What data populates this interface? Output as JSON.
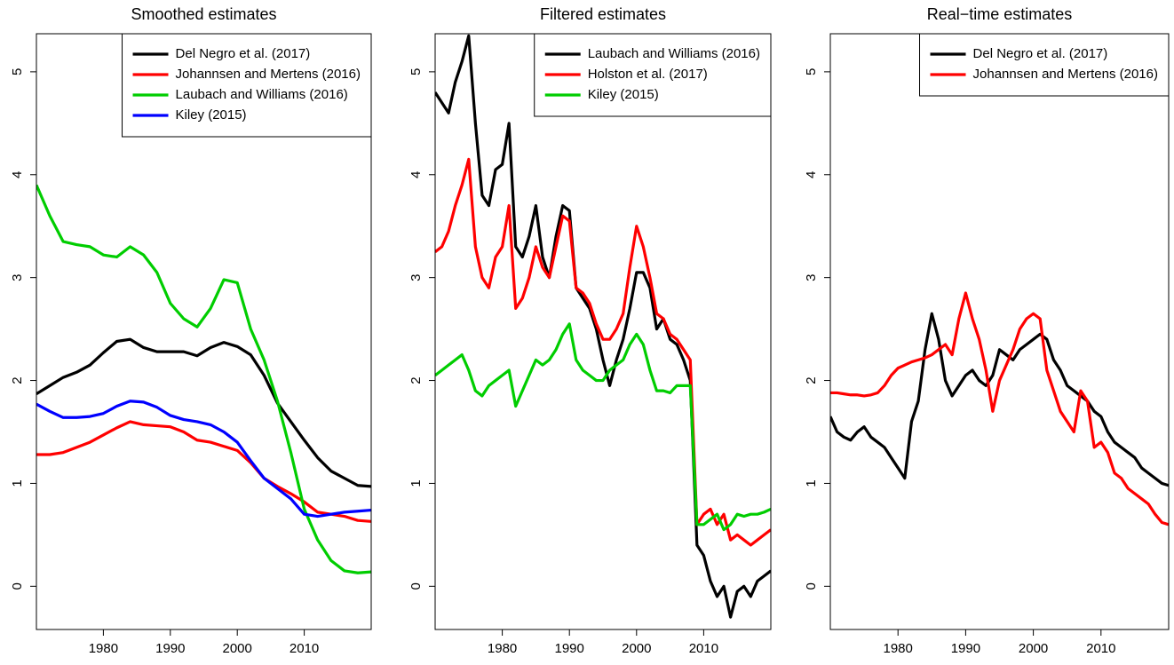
{
  "chart_data": [
    {
      "type": "line",
      "title": "Smoothed estimates",
      "legend": "topright",
      "x": [
        1970,
        1972,
        1974,
        1976,
        1978,
        1980,
        1982,
        1984,
        1986,
        1988,
        1990,
        1992,
        1994,
        1996,
        1998,
        2000,
        2002,
        2004,
        2006,
        2008,
        2010,
        2012,
        2014,
        2016,
        2018,
        2020
      ],
      "xlim": [
        1970,
        2020
      ],
      "ylim": [
        -0.42,
        5.37
      ],
      "xticks": [
        1980,
        1990,
        2000,
        2010
      ],
      "yticks": [
        0,
        1,
        2,
        3,
        4,
        5
      ],
      "series": [
        {
          "name": "Del Negro et al. (2017)",
          "color": "#000000",
          "values": [
            1.87,
            1.95,
            2.03,
            2.08,
            2.15,
            2.27,
            2.38,
            2.4,
            2.32,
            2.28,
            2.28,
            2.28,
            2.24,
            2.32,
            2.37,
            2.33,
            2.25,
            2.05,
            1.78,
            1.6,
            1.42,
            1.25,
            1.12,
            1.05,
            0.98,
            0.97
          ]
        },
        {
          "name": "Johannsen and Mertens (2016)",
          "color": "#ff0000",
          "values": [
            1.28,
            1.28,
            1.3,
            1.35,
            1.4,
            1.47,
            1.54,
            1.6,
            1.57,
            1.56,
            1.55,
            1.5,
            1.42,
            1.4,
            1.36,
            1.32,
            1.2,
            1.05,
            0.97,
            0.9,
            0.82,
            0.72,
            0.7,
            0.68,
            0.64,
            0.63
          ]
        },
        {
          "name": "Laubach and Williams (2016)",
          "color": "#00cd00",
          "values": [
            3.9,
            3.6,
            3.35,
            3.32,
            3.3,
            3.22,
            3.2,
            3.3,
            3.22,
            3.05,
            2.75,
            2.6,
            2.52,
            2.7,
            2.98,
            2.95,
            2.5,
            2.2,
            1.8,
            1.3,
            0.75,
            0.45,
            0.25,
            0.15,
            0.13,
            0.14
          ]
        },
        {
          "name": "Kiley (2015)",
          "color": "#0000ff",
          "values": [
            1.77,
            1.7,
            1.64,
            1.64,
            1.65,
            1.68,
            1.75,
            1.8,
            1.79,
            1.74,
            1.66,
            1.62,
            1.6,
            1.57,
            1.5,
            1.4,
            1.22,
            1.05,
            0.95,
            0.85,
            0.7,
            0.68,
            0.7,
            0.72,
            0.73,
            0.74
          ]
        }
      ]
    },
    {
      "type": "line",
      "title": "Filtered estimates",
      "legend": "topright",
      "x": [
        1970,
        1971,
        1972,
        1973,
        1974,
        1975,
        1976,
        1977,
        1978,
        1979,
        1980,
        1981,
        1982,
        1983,
        1984,
        1985,
        1986,
        1987,
        1988,
        1989,
        1990,
        1991,
        1992,
        1993,
        1994,
        1995,
        1996,
        1997,
        1998,
        1999,
        2000,
        2001,
        2002,
        2003,
        2004,
        2005,
        2006,
        2007,
        2008,
        2009,
        2010,
        2011,
        2012,
        2013,
        2014,
        2015,
        2016,
        2017,
        2018,
        2019,
        2020
      ],
      "xlim": [
        1970,
        2020
      ],
      "ylim": [
        -0.42,
        5.37
      ],
      "xticks": [
        1980,
        1990,
        2000,
        2010
      ],
      "yticks": [
        0,
        1,
        2,
        3,
        4,
        5
      ],
      "series": [
        {
          "name": "Laubach and Williams (2016)",
          "color": "#000000",
          "values": [
            4.8,
            4.7,
            4.6,
            4.9,
            5.1,
            5.35,
            4.5,
            3.8,
            3.7,
            4.05,
            4.1,
            4.5,
            3.3,
            3.2,
            3.4,
            3.7,
            3.2,
            3.0,
            3.4,
            3.7,
            3.65,
            2.9,
            2.8,
            2.7,
            2.5,
            2.2,
            1.95,
            2.2,
            2.4,
            2.7,
            3.05,
            3.05,
            2.9,
            2.5,
            2.6,
            2.4,
            2.35,
            2.2,
            2.0,
            0.4,
            0.3,
            0.05,
            -0.1,
            0.0,
            -0.3,
            -0.05,
            0.0,
            -0.1,
            0.05,
            0.1,
            0.15
          ]
        },
        {
          "name": "Holston et al. (2017)",
          "color": "#ff0000",
          "values": [
            3.25,
            3.3,
            3.45,
            3.7,
            3.9,
            4.15,
            3.3,
            3.0,
            2.9,
            3.2,
            3.3,
            3.7,
            2.7,
            2.8,
            3.0,
            3.3,
            3.1,
            3.0,
            3.3,
            3.6,
            3.55,
            2.9,
            2.85,
            2.75,
            2.55,
            2.4,
            2.4,
            2.5,
            2.65,
            3.1,
            3.5,
            3.3,
            3.0,
            2.65,
            2.6,
            2.45,
            2.4,
            2.3,
            2.2,
            0.6,
            0.7,
            0.75,
            0.6,
            0.7,
            0.45,
            0.5,
            0.45,
            0.4,
            0.45,
            0.5,
            0.55
          ]
        },
        {
          "name": "Kiley (2015)",
          "color": "#00cd00",
          "values": [
            2.05,
            2.1,
            2.15,
            2.2,
            2.25,
            2.1,
            1.9,
            1.85,
            1.95,
            2.0,
            2.05,
            2.1,
            1.75,
            1.9,
            2.05,
            2.2,
            2.15,
            2.2,
            2.3,
            2.45,
            2.55,
            2.2,
            2.1,
            2.05,
            2.0,
            2.0,
            2.1,
            2.15,
            2.2,
            2.35,
            2.45,
            2.35,
            2.1,
            1.9,
            1.9,
            1.88,
            1.95,
            1.95,
            1.95,
            0.6,
            0.6,
            0.65,
            0.7,
            0.55,
            0.6,
            0.7,
            0.68,
            0.7,
            0.7,
            0.72,
            0.75
          ]
        }
      ]
    },
    {
      "type": "line",
      "title": "Real−time estimates",
      "legend": "topright",
      "x": [
        1970,
        1971,
        1972,
        1973,
        1974,
        1975,
        1976,
        1977,
        1978,
        1979,
        1980,
        1981,
        1982,
        1983,
        1984,
        1985,
        1986,
        1987,
        1988,
        1989,
        1990,
        1991,
        1992,
        1993,
        1994,
        1995,
        1996,
        1997,
        1998,
        1999,
        2000,
        2001,
        2002,
        2003,
        2004,
        2005,
        2006,
        2007,
        2008,
        2009,
        2010,
        2011,
        2012,
        2013,
        2014,
        2015,
        2016,
        2017,
        2018,
        2019,
        2020
      ],
      "xlim": [
        1970,
        2020
      ],
      "ylim": [
        -0.42,
        5.37
      ],
      "xticks": [
        1980,
        1990,
        2000,
        2010
      ],
      "yticks": [
        0,
        1,
        2,
        3,
        4,
        5
      ],
      "series": [
        {
          "name": "Del Negro et al. (2017)",
          "color": "#000000",
          "values": [
            1.65,
            1.5,
            1.45,
            1.42,
            1.5,
            1.55,
            1.45,
            1.4,
            1.35,
            1.25,
            1.15,
            1.05,
            1.6,
            1.8,
            2.3,
            2.65,
            2.4,
            2.0,
            1.85,
            1.95,
            2.05,
            2.1,
            2.0,
            1.95,
            2.05,
            2.3,
            2.25,
            2.2,
            2.3,
            2.35,
            2.4,
            2.45,
            2.4,
            2.2,
            2.1,
            1.95,
            1.9,
            1.85,
            1.8,
            1.7,
            1.65,
            1.5,
            1.4,
            1.35,
            1.3,
            1.25,
            1.15,
            1.1,
            1.05,
            1.0,
            0.98
          ]
        },
        {
          "name": "Johannsen and Mertens (2016)",
          "color": "#ff0000",
          "values": [
            1.88,
            1.88,
            1.87,
            1.86,
            1.86,
            1.85,
            1.86,
            1.88,
            1.95,
            2.05,
            2.12,
            2.15,
            2.18,
            2.2,
            2.22,
            2.25,
            2.3,
            2.35,
            2.25,
            2.6,
            2.85,
            2.6,
            2.4,
            2.1,
            1.7,
            2.0,
            2.15,
            2.3,
            2.5,
            2.6,
            2.65,
            2.6,
            2.1,
            1.9,
            1.7,
            1.6,
            1.5,
            1.9,
            1.8,
            1.35,
            1.4,
            1.3,
            1.1,
            1.05,
            0.95,
            0.9,
            0.85,
            0.8,
            0.7,
            0.62,
            0.6
          ]
        }
      ]
    }
  ]
}
